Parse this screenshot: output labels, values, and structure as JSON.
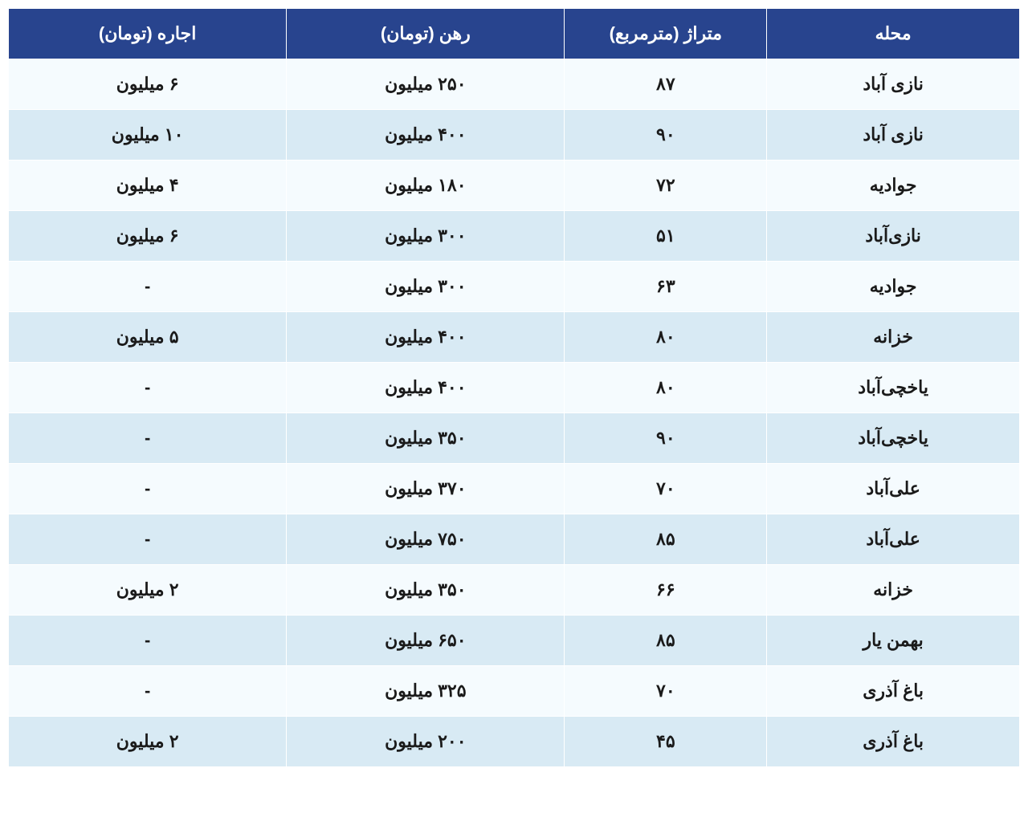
{
  "table": {
    "type": "table",
    "header_bg_color": "#28448e",
    "header_text_color": "#ffffff",
    "row_odd_bg_color": "#f5fbfe",
    "row_even_bg_color": "#d8eaf4",
    "text_color": "#1a1a1a",
    "border_color": "#ffffff",
    "font_size": 22,
    "font_weight": "bold",
    "columns": [
      {
        "key": "neighborhood",
        "label": "محله",
        "width": "25%"
      },
      {
        "key": "area",
        "label": "متراژ (مترمربع)",
        "width": "20%"
      },
      {
        "key": "deposit",
        "label": "رهن (تومان)",
        "width": "27.5%"
      },
      {
        "key": "rent",
        "label": "اجاره (تومان)",
        "width": "27.5%"
      }
    ],
    "rows": [
      {
        "neighborhood": "نازی آباد",
        "area": "۸۷",
        "deposit": "۲۵۰ میلیون",
        "rent": "۶ میلیون"
      },
      {
        "neighborhood": "نازی آباد",
        "area": "۹۰",
        "deposit": "۴۰۰ میلیون",
        "rent": "۱۰ میلیون"
      },
      {
        "neighborhood": "جوادیه",
        "area": "۷۲",
        "deposit": "۱۸۰ میلیون",
        "rent": "۴ میلیون"
      },
      {
        "neighborhood": "نازی‌آباد",
        "area": "۵۱",
        "deposit": "۳۰۰ میلیون",
        "rent": "۶ میلیون"
      },
      {
        "neighborhood": "جوادیه",
        "area": "۶۳",
        "deposit": "۳۰۰ میلیون",
        "rent": "-"
      },
      {
        "neighborhood": "خزانه",
        "area": "۸۰",
        "deposit": "۴۰۰ میلیون",
        "rent": "۵ میلیون"
      },
      {
        "neighborhood": "یاخچی‌آباد",
        "area": "۸۰",
        "deposit": "۴۰۰ میلیون",
        "rent": "-"
      },
      {
        "neighborhood": "یاخچی‌آباد",
        "area": "۹۰",
        "deposit": "۳۵۰ میلیون",
        "rent": "-"
      },
      {
        "neighborhood": "علی‌آباد",
        "area": "۷۰",
        "deposit": "۳۷۰ میلیون",
        "rent": "-"
      },
      {
        "neighborhood": "علی‌آباد",
        "area": "۸۵",
        "deposit": "۷۵۰ میلیون",
        "rent": "-"
      },
      {
        "neighborhood": "خزانه",
        "area": "۶۶",
        "deposit": "۳۵۰ میلیون",
        "rent": "۲ میلیون"
      },
      {
        "neighborhood": "بهمن یار",
        "area": "۸۵",
        "deposit": "۶۵۰ میلیون",
        "rent": "-"
      },
      {
        "neighborhood": "باغ آذری",
        "area": "۷۰",
        "deposit": "۳۲۵ میلیون",
        "rent": "-"
      },
      {
        "neighborhood": "باغ آذری",
        "area": "۴۵",
        "deposit": "۲۰۰ میلیون",
        "rent": "۲ میلیون"
      }
    ]
  }
}
